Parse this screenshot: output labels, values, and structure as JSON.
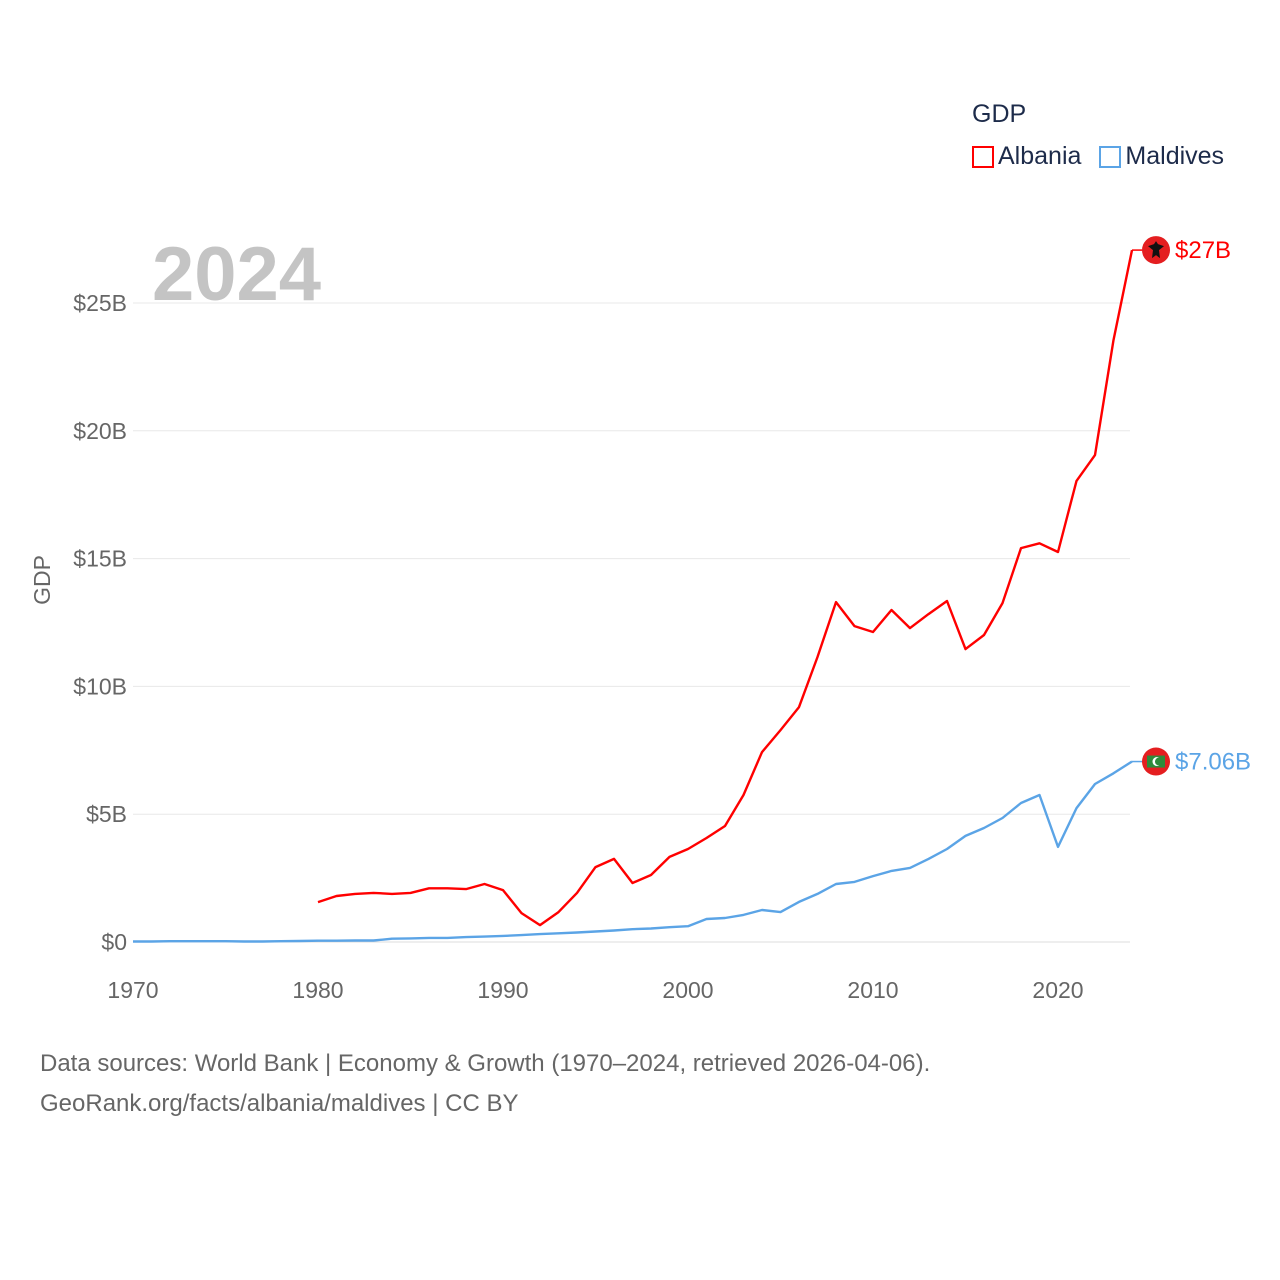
{
  "chart_data": {
    "type": "line",
    "title": "GDP",
    "year_label": "2024",
    "ylabel": "GDP",
    "xlabel": "",
    "xlim": [
      1970,
      2024
    ],
    "ylim": [
      0,
      27
    ],
    "x_ticks": [
      "1970",
      "1980",
      "1990",
      "2000",
      "2010",
      "2020"
    ],
    "x_tick_values": [
      1970,
      1980,
      1990,
      2000,
      2010,
      2020
    ],
    "y_ticks": [
      "$0",
      "$5B",
      "$10B",
      "$15B",
      "$20B",
      "$25B"
    ],
    "y_tick_values": [
      0,
      5,
      10,
      15,
      20,
      25
    ],
    "grid": true,
    "legend_position": "top-right",
    "series": [
      {
        "name": "Albania",
        "color": "#ff0000",
        "end_label": "$27B",
        "flag": "albania-flag",
        "x": [
          1980,
          1981,
          1982,
          1983,
          1984,
          1985,
          1986,
          1987,
          1988,
          1989,
          1990,
          1991,
          1992,
          1993,
          1994,
          1995,
          1996,
          1997,
          1998,
          1999,
          2000,
          2001,
          2002,
          2003,
          2004,
          2005,
          2006,
          2007,
          2008,
          2009,
          2010,
          2011,
          2012,
          2013,
          2014,
          2015,
          2016,
          2017,
          2018,
          2019,
          2020,
          2021,
          2022,
          2023,
          2024
        ],
        "values": [
          1.56,
          1.8,
          1.88,
          1.92,
          1.88,
          1.92,
          2.1,
          2.1,
          2.07,
          2.27,
          2.03,
          1.13,
          0.66,
          1.17,
          1.92,
          2.93,
          3.25,
          2.31,
          2.62,
          3.33,
          3.64,
          4.07,
          4.54,
          5.75,
          7.43,
          8.29,
          9.19,
          11.15,
          13.3,
          12.36,
          12.13,
          12.99,
          12.28,
          12.83,
          13.34,
          11.46,
          12.01,
          13.26,
          15.41,
          15.6,
          15.26,
          18.04,
          19.05,
          23.55,
          27.07
        ]
      },
      {
        "name": "Maldives",
        "color": "#5ba4e6",
        "end_label": "$7.06B",
        "flag": "maldives-flag",
        "x": [
          1970,
          1971,
          1972,
          1973,
          1974,
          1975,
          1976,
          1977,
          1978,
          1979,
          1980,
          1981,
          1982,
          1983,
          1984,
          1985,
          1986,
          1987,
          1988,
          1989,
          1990,
          1991,
          1992,
          1993,
          1994,
          1995,
          1996,
          1997,
          1998,
          1999,
          2000,
          2001,
          2002,
          2003,
          2004,
          2005,
          2006,
          2007,
          2008,
          2009,
          2010,
          2011,
          2012,
          2013,
          2014,
          2015,
          2016,
          2017,
          2018,
          2019,
          2020,
          2021,
          2022,
          2023,
          2024
        ],
        "values": [
          0.02,
          0.02,
          0.03,
          0.03,
          0.03,
          0.03,
          0.02,
          0.02,
          0.03,
          0.04,
          0.05,
          0.05,
          0.06,
          0.06,
          0.13,
          0.14,
          0.16,
          0.16,
          0.19,
          0.21,
          0.24,
          0.27,
          0.31,
          0.34,
          0.37,
          0.41,
          0.45,
          0.5,
          0.53,
          0.58,
          0.62,
          0.9,
          0.94,
          1.06,
          1.25,
          1.17,
          1.57,
          1.88,
          2.27,
          2.35,
          2.58,
          2.78,
          2.9,
          3.25,
          3.64,
          4.15,
          4.46,
          4.85,
          5.44,
          5.75,
          3.72,
          5.24,
          6.18,
          6.6,
          7.06
        ]
      }
    ]
  },
  "source": {
    "line1": "Data sources: World Bank | Economy & Growth (1970–2024, retrieved 2026-04-06).",
    "line2": "GeoRank.org/facts/albania/maldives | CC BY"
  }
}
